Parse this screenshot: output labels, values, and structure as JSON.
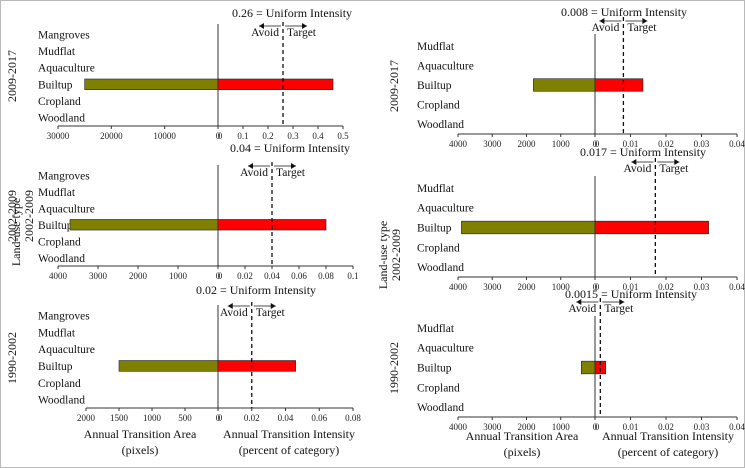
{
  "colors": {
    "area_bar": "#808000",
    "intensity_bar": "#ff0000",
    "bar_outline": "#222222"
  },
  "categories": [
    "Mangroves",
    "Mudflat",
    "Aquaculture",
    "Builtup",
    "Cropland",
    "Woodland"
  ],
  "footer": {
    "area_label_line1": "Annual Transition Area",
    "area_label_line2": "(pixels)",
    "intensity_label_line1": "Annual Transition Intensity",
    "intensity_label_line2": "(percent of category)"
  },
  "legend": {
    "avoid": "Avoid",
    "target": "Target"
  },
  "left_axis_label": {
    "line1": "Land-use type",
    "line2": "2002-2009"
  },
  "chart_data": [
    {
      "type": "bar",
      "period": "2009-2017",
      "column": "left",
      "uniform_intensity": 0.26,
      "uniform_label": "0.26 = Uniform Intensity",
      "area": {
        "category": "Builtup",
        "value": 25000,
        "ticks": [
          30000,
          20000,
          10000,
          0
        ]
      },
      "intensity": {
        "category": "Builtup",
        "value": 0.46,
        "ticks": [
          0,
          0.1,
          0.2,
          0.3,
          0.4,
          0.5
        ]
      }
    },
    {
      "type": "bar",
      "period": "2002-2009",
      "column": "left",
      "uniform_intensity": 0.04,
      "uniform_label": "0.04 = Uniform Intensity",
      "area": {
        "category": "Builtup",
        "value": 3700,
        "ticks": [
          4000,
          3000,
          2000,
          1000,
          0
        ]
      },
      "intensity": {
        "category": "Builtup",
        "value": 0.08,
        "ticks": [
          0,
          0.02,
          0.04,
          0.06,
          0.08,
          0.1
        ]
      }
    },
    {
      "type": "bar",
      "period": "1990-2002",
      "column": "left",
      "uniform_intensity": 0.02,
      "uniform_label": "0.02 = Uniform Intensity",
      "area": {
        "category": "Builtup",
        "value": 1500,
        "ticks": [
          2000,
          1500,
          1000,
          500,
          0
        ]
      },
      "intensity": {
        "category": "Builtup",
        "value": 0.046,
        "ticks": [
          0,
          0.02,
          0.04,
          0.06,
          0.08
        ]
      }
    },
    {
      "type": "bar",
      "period": "2009-2017",
      "column": "right",
      "uniform_intensity": 0.008,
      "uniform_label": "0.008 = Uniform Intensity",
      "area": {
        "category": "Builtup",
        "value": 1800,
        "ticks": [
          4000,
          3000,
          2000,
          1000,
          0
        ]
      },
      "intensity": {
        "category": "Builtup",
        "value": 0.0135,
        "ticks": [
          0,
          0.01,
          0.02,
          0.03,
          0.04
        ]
      }
    },
    {
      "type": "bar",
      "period": "2002-2009",
      "column": "right",
      "uniform_intensity": 0.017,
      "uniform_label": "0.017 = Uniform Intensity",
      "area": {
        "category": "Builtup",
        "value": 3900,
        "ticks": [
          4000,
          3000,
          2000,
          1000,
          0
        ]
      },
      "intensity": {
        "category": "Builtup",
        "value": 0.032,
        "ticks": [
          0,
          0.01,
          0.02,
          0.03,
          0.04
        ]
      }
    },
    {
      "type": "bar",
      "period": "1990-2002",
      "column": "right",
      "uniform_intensity": 0.0015,
      "uniform_label": "0.0015 = Uniform Intensity",
      "area": {
        "category": "Builtup",
        "value": 400,
        "ticks": [
          4000,
          3000,
          2000,
          1000,
          0
        ]
      },
      "intensity": {
        "category": "Builtup",
        "value": 0.003,
        "ticks": [
          0,
          0.01,
          0.02,
          0.03,
          0.04
        ]
      }
    }
  ]
}
